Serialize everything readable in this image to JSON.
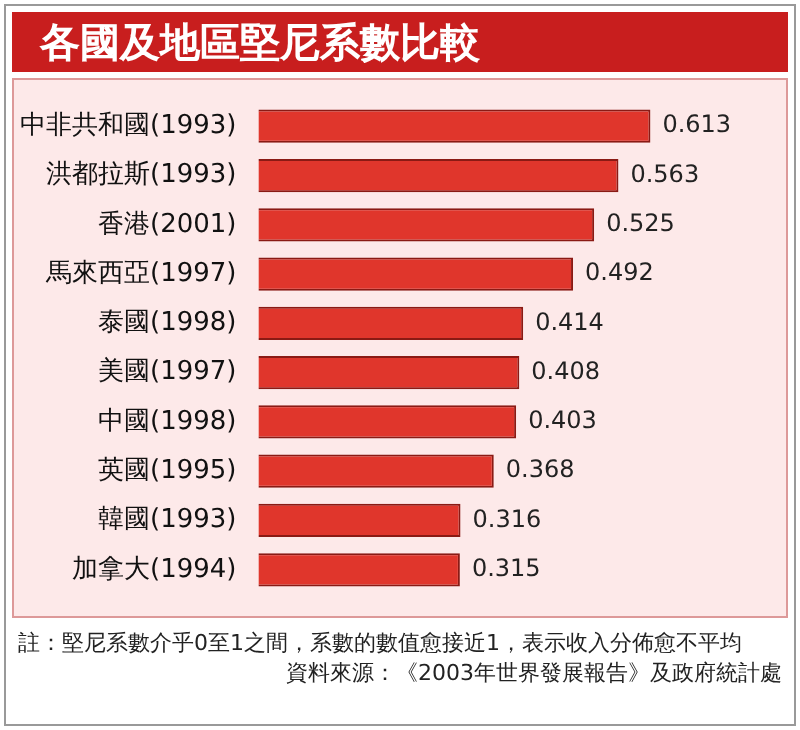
{
  "chart_data": {
    "type": "bar",
    "orientation": "horizontal",
    "title": "各國及地區堅尼系數比較",
    "categories": [
      "中非共和國(1993)",
      "洪都拉斯(1993)",
      "香港(2001)",
      "馬來西亞(1997)",
      "泰國(1998)",
      "美國(1997)",
      "中國(1998)",
      "英國(1995)",
      "韓國(1993)",
      "加拿大(1994)"
    ],
    "values": [
      0.613,
      0.563,
      0.525,
      0.492,
      0.414,
      0.408,
      0.403,
      0.368,
      0.316,
      0.315
    ],
    "color": "#e0362c",
    "data_labels": true,
    "legend": false,
    "tick_labels": "y",
    "annotations": [
      "註：堅尼系數介乎0至1之間，系數的數值愈接近1，表示收入分佈愈不平均",
      "資料來源：《2003年世界發展報告》及政府統計處"
    ]
  }
}
